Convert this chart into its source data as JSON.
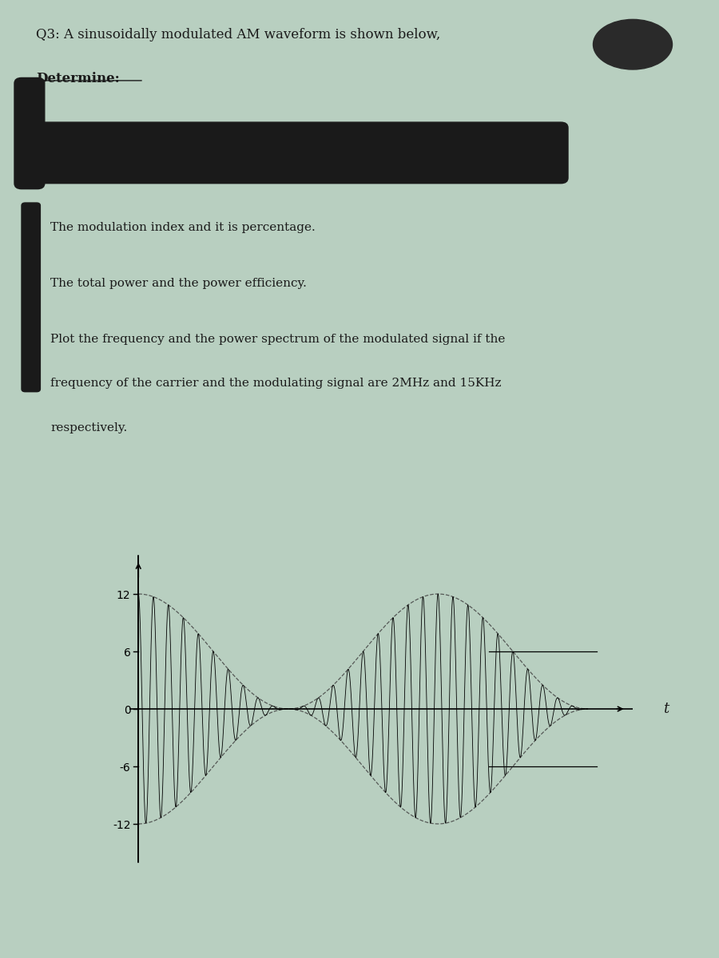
{
  "title_line1": "Q3: A sinusoidally modulated AM waveform is shown below,",
  "title_line2": "Determine:",
  "bullet1": "The modulation index and it is percentage.",
  "bullet2": "The total power and the power efficiency.",
  "bullet3_line1": "Plot the frequency and the power spectrum of the modulated signal if the",
  "bullet3_line2": "frequency of the carrier and the modulating signal are 2MHz and 15KHz",
  "bullet3_line3": "respectively.",
  "redacted_bar_color": "#1a1a1a",
  "redacted_circle_color": "#2a2a2a",
  "background_color": "#b8cfc0",
  "text_color": "#1a1a1a",
  "y_ticks": [
    -12,
    -6,
    0,
    6,
    12
  ],
  "y_label_t": "t",
  "carrier_freq_ratio": 20,
  "carrier_amplitude": 6,
  "modulating_amplitude": 6,
  "font_size_title": 12,
  "font_size_body": 11,
  "font_size_axis": 12,
  "waveform_color": "#000000",
  "axis_color": "#000000"
}
